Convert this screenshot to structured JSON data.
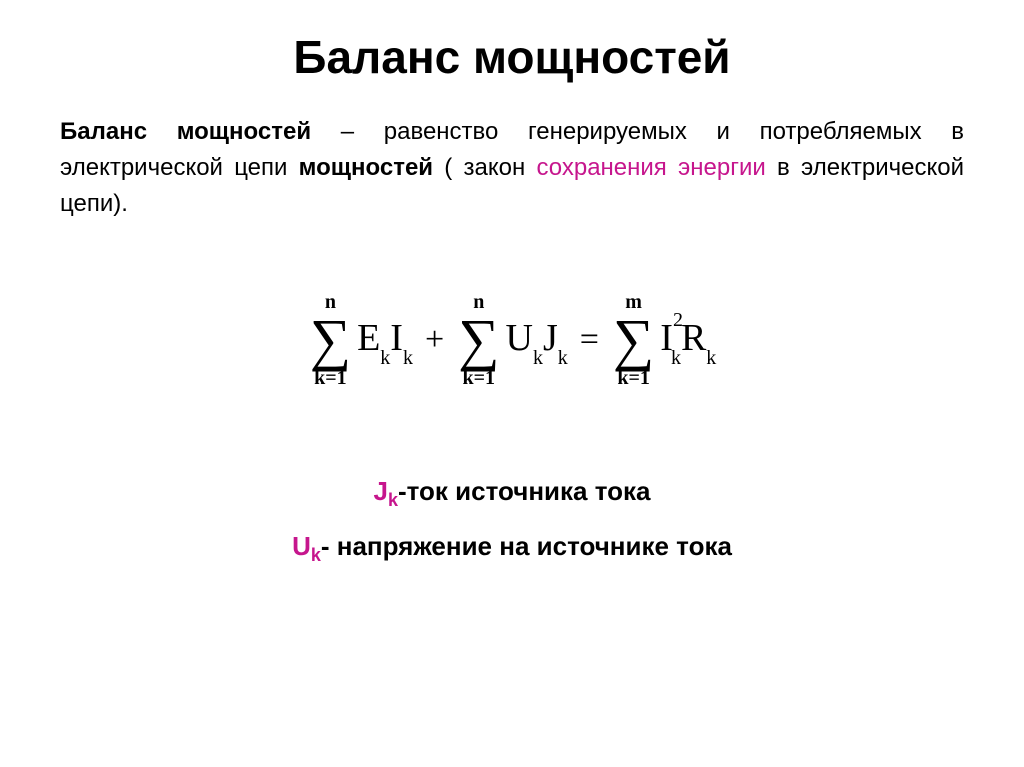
{
  "title": "Баланс мощностей",
  "definition": {
    "p1_bold": "Баланс мощностей",
    "p1_rest1": " – равенство генерируемых и потребляемых в электрической цепи ",
    "p1_bold2": "мощностей",
    "p1_rest2": " ( закон ",
    "p1_magenta": "сохранения энергии",
    "p1_rest3": " в электрической цепи)."
  },
  "formula": {
    "sum1": {
      "top": "n",
      "bot": "k=1",
      "body": "E",
      "body_sub": "k",
      "body2": "I",
      "body2_sub": "k"
    },
    "op1": "+",
    "sum2": {
      "top": "n",
      "bot": "k=1",
      "body": "U",
      "body_sub": "k",
      "body2": "J",
      "body2_sub": "k"
    },
    "op2": "=",
    "sum3": {
      "top": "m",
      "bot": "k=1",
      "body": "I",
      "body_sup": "2",
      "body_sub": "k",
      "body2": "R",
      "body2_sub": "k"
    }
  },
  "legend": {
    "l1_sym": "J",
    "l1_sub": "k",
    "l1_text": "-ток источника тока",
    "l2_sym": "U",
    "l2_sub": "k",
    "l2_text": "- напряжение на источнике тока"
  },
  "colors": {
    "text": "#000000",
    "accent": "#c6168d",
    "background": "#ffffff"
  }
}
